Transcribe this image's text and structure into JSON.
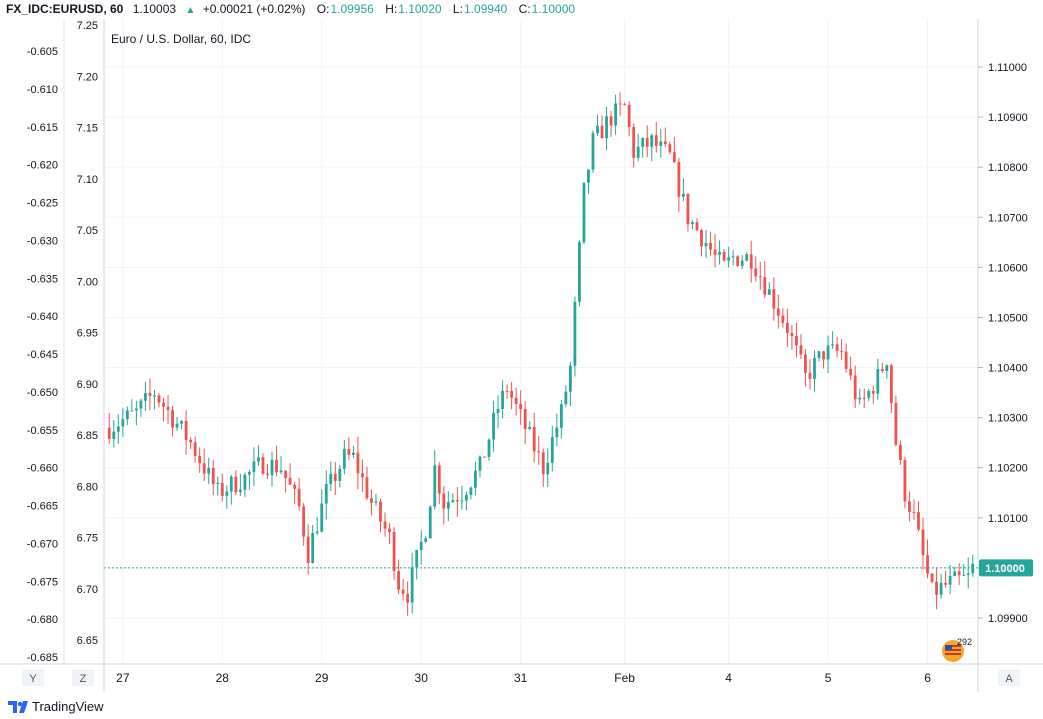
{
  "header": {
    "symbol": "FX_IDC:EURUSD, 60",
    "last": "1.10003",
    "change": "+0.00021 (+0.02%)",
    "o_label": "O:",
    "o_value": "1.09956",
    "h_label": "H:",
    "h_value": "1.10020",
    "l_label": "L:",
    "l_value": "1.09940",
    "c_label": "C:",
    "c_value": "1.10000"
  },
  "chart_data": {
    "type": "candlestick",
    "title": "Euro / U.S. Dollar, 60, IDC",
    "right_axis": {
      "ticks": [
        "1.11000",
        "1.10900",
        "1.10800",
        "1.10700",
        "1.10600",
        "1.10500",
        "1.10400",
        "1.10300",
        "1.10200",
        "1.10100",
        "1.10000",
        "1.09900"
      ],
      "values": [
        1.11,
        1.109,
        1.108,
        1.107,
        1.106,
        1.105,
        1.104,
        1.103,
        1.102,
        1.101,
        1.1,
        1.099
      ],
      "current_price_label": "1.10000",
      "current_price": 1.1
    },
    "left_axis_inner": {
      "ticks": [
        "7.25",
        "7.20",
        "7.15",
        "7.10",
        "7.05",
        "7.00",
        "6.95",
        "6.90",
        "6.85",
        "6.80",
        "6.75",
        "6.70",
        "6.65"
      ],
      "values": [
        7.25,
        7.2,
        7.15,
        7.1,
        7.05,
        7.0,
        6.95,
        6.9,
        6.85,
        6.8,
        6.75,
        6.7,
        6.65
      ]
    },
    "left_axis_outer": {
      "ticks": [
        "-0.605",
        "-0.610",
        "-0.615",
        "-0.620",
        "-0.625",
        "-0.630",
        "-0.635",
        "-0.640",
        "-0.645",
        "-0.650",
        "-0.655",
        "-0.660",
        "-0.665",
        "-0.670",
        "-0.675",
        "-0.680",
        "-0.685"
      ],
      "values": [
        -0.605,
        -0.61,
        -0.615,
        -0.62,
        -0.625,
        -0.63,
        -0.635,
        -0.64,
        -0.645,
        -0.65,
        -0.655,
        -0.66,
        -0.665,
        -0.67,
        -0.675,
        -0.68,
        -0.685
      ]
    },
    "x_axis": {
      "labels": [
        "27",
        "28",
        "29",
        "30",
        "31",
        "Feb",
        "4",
        "5",
        "6"
      ],
      "positions": [
        3,
        25,
        47,
        69,
        91,
        114,
        137,
        159,
        181
      ]
    },
    "x_count": 192,
    "path": [
      [
        0,
        1.1028
      ],
      [
        6,
        1.1031
      ],
      [
        10,
        1.1035
      ],
      [
        14,
        1.103
      ],
      [
        18,
        1.1025
      ],
      [
        24,
        1.1015
      ],
      [
        30,
        1.1018
      ],
      [
        34,
        1.1021
      ],
      [
        38,
        1.102
      ],
      [
        42,
        1.1012
      ],
      [
        44,
        1.1003
      ],
      [
        48,
        1.1015
      ],
      [
        52,
        1.1022
      ],
      [
        54,
        1.1022
      ],
      [
        58,
        1.1013
      ],
      [
        62,
        1.1006
      ],
      [
        64,
        1.0997
      ],
      [
        66,
        1.0995
      ],
      [
        70,
        1.1008
      ],
      [
        72,
        1.102
      ],
      [
        74,
        1.1013
      ],
      [
        78,
        1.1015
      ],
      [
        82,
        1.102
      ],
      [
        86,
        1.1032
      ],
      [
        88,
        1.1036
      ],
      [
        92,
        1.1028
      ],
      [
        96,
        1.102
      ],
      [
        100,
        1.1031
      ],
      [
        102,
        1.104
      ],
      [
        105,
        1.1075
      ],
      [
        107,
        1.1085
      ],
      [
        111,
        1.109
      ],
      [
        114,
        1.1092
      ],
      [
        116,
        1.1083
      ],
      [
        120,
        1.1085
      ],
      [
        124,
        1.1082
      ],
      [
        128,
        1.107
      ],
      [
        132,
        1.1065
      ],
      [
        134,
        1.1062
      ],
      [
        136,
        1.106
      ],
      [
        138,
        1.1062
      ],
      [
        142,
        1.1062
      ],
      [
        146,
        1.1055
      ],
      [
        150,
        1.1048
      ],
      [
        154,
        1.1038
      ],
      [
        158,
        1.1043
      ],
      [
        162,
        1.1043
      ],
      [
        166,
        1.1032
      ],
      [
        170,
        1.1038
      ],
      [
        172,
        1.1042
      ],
      [
        174,
        1.1025
      ],
      [
        176,
        1.1015
      ],
      [
        178,
        1.101
      ],
      [
        180,
        1.1002
      ],
      [
        182,
        1.0995
      ],
      [
        186,
        1.0997
      ],
      [
        190,
        1.0998
      ],
      [
        191,
        1.1
      ]
    ],
    "badge_text": "292"
  },
  "toolbar": {
    "y_label": "Y",
    "z_label": "Z",
    "a_label": "A"
  },
  "footer": {
    "brand": "TradingView"
  },
  "colors": {
    "up": "#26a69a",
    "down": "#ef5350",
    "grid": "#f0f3fa",
    "axis": "#787b86",
    "price_line": "#26a69a"
  }
}
